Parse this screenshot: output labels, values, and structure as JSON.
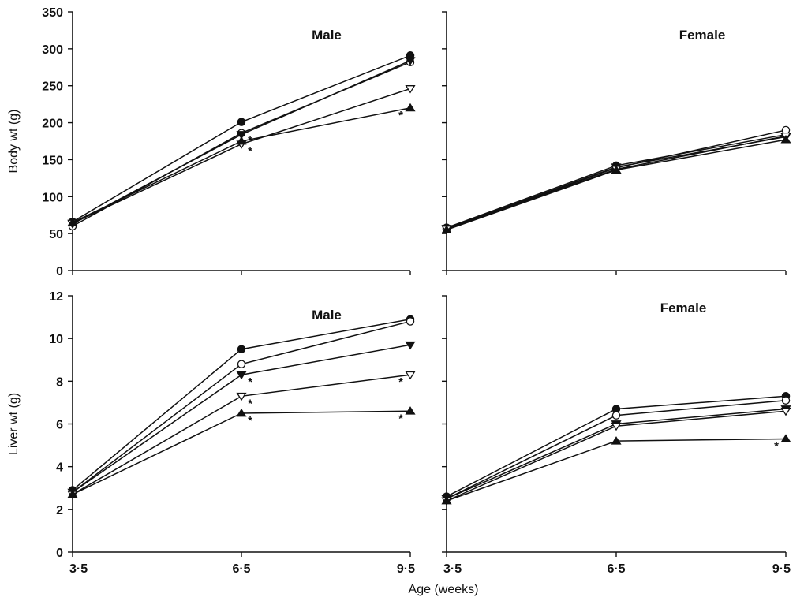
{
  "chart_data": [
    {
      "type": "line",
      "panel": "top-left",
      "title": "Male",
      "ylabel": "Body wt (g)",
      "xlabel": "",
      "x": [
        3.5,
        6.5,
        9.5
      ],
      "xlim": [
        3.5,
        9.5
      ],
      "ylim": [
        0,
        350
      ],
      "yticks": [
        "0",
        "50",
        "100",
        "150",
        "200",
        "250",
        "300",
        "350"
      ],
      "xticks": [],
      "series": [
        {
          "marker": "filled-circle",
          "values": [
            66,
            201,
            291
          ],
          "stars": [
            false,
            false,
            false
          ]
        },
        {
          "marker": "open-circle",
          "values": [
            60,
            186,
            282
          ],
          "stars": [
            false,
            true,
            false
          ]
        },
        {
          "marker": "filled-triangle-down",
          "values": [
            63,
            184,
            284
          ],
          "stars": [
            false,
            false,
            false
          ]
        },
        {
          "marker": "open-triangle-down",
          "values": [
            64,
            171,
            246
          ],
          "stars": [
            false,
            true,
            false
          ]
        },
        {
          "marker": "filled-triangle-up",
          "values": [
            65,
            175,
            220
          ],
          "stars": [
            false,
            false,
            true
          ]
        }
      ]
    },
    {
      "type": "line",
      "panel": "top-right",
      "title": "Female",
      "ylabel": "",
      "xlabel": "",
      "x": [
        3.5,
        6.5,
        9.5
      ],
      "xlim": [
        3.5,
        9.5
      ],
      "ylim": [
        0,
        350
      ],
      "yticks": [],
      "xticks": [],
      "series": [
        {
          "marker": "filled-circle",
          "values": [
            58,
            142,
            184
          ],
          "stars": [
            false,
            false,
            false
          ]
        },
        {
          "marker": "open-circle",
          "values": [
            56,
            139,
            190
          ],
          "stars": [
            false,
            false,
            false
          ]
        },
        {
          "marker": "filled-triangle-down",
          "values": [
            57,
            140,
            181
          ],
          "stars": [
            false,
            false,
            false
          ]
        },
        {
          "marker": "open-triangle-down",
          "values": [
            56,
            137,
            182
          ],
          "stars": [
            false,
            false,
            false
          ]
        },
        {
          "marker": "filled-triangle-up",
          "values": [
            55,
            136,
            177
          ],
          "stars": [
            false,
            false,
            false
          ]
        }
      ]
    },
    {
      "type": "line",
      "panel": "bottom-left",
      "title": "Male",
      "ylabel": "Liver wt (g)",
      "xlabel": "",
      "x": [
        3.5,
        6.5,
        9.5
      ],
      "xlim": [
        3.5,
        9.5
      ],
      "ylim": [
        0,
        12
      ],
      "yticks": [
        "0",
        "2",
        "4",
        "6",
        "8",
        "10",
        "12"
      ],
      "xticks": [
        "3·5",
        "6·5",
        "9·5"
      ],
      "series": [
        {
          "marker": "filled-circle",
          "values": [
            2.9,
            9.5,
            10.9
          ],
          "stars": [
            false,
            false,
            false
          ]
        },
        {
          "marker": "open-circle",
          "values": [
            2.8,
            8.8,
            10.8
          ],
          "stars": [
            false,
            false,
            false
          ]
        },
        {
          "marker": "filled-triangle-down",
          "values": [
            2.8,
            8.3,
            9.7
          ],
          "stars": [
            false,
            true,
            false
          ]
        },
        {
          "marker": "open-triangle-down",
          "values": [
            2.7,
            7.3,
            8.3
          ],
          "stars": [
            false,
            true,
            true
          ]
        },
        {
          "marker": "filled-triangle-up",
          "values": [
            2.7,
            6.5,
            6.6
          ],
          "stars": [
            false,
            true,
            true
          ]
        }
      ]
    },
    {
      "type": "line",
      "panel": "bottom-right",
      "title": "Female",
      "ylabel": "",
      "xlabel": "",
      "x": [
        3.5,
        6.5,
        9.5
      ],
      "xlim": [
        3.5,
        9.5
      ],
      "ylim": [
        0,
        12
      ],
      "yticks": [],
      "xticks": [
        "3·5",
        "6·5",
        "9·5"
      ],
      "series": [
        {
          "marker": "filled-circle",
          "values": [
            2.6,
            6.7,
            7.3
          ],
          "stars": [
            false,
            false,
            false
          ]
        },
        {
          "marker": "open-circle",
          "values": [
            2.5,
            6.4,
            7.1
          ],
          "stars": [
            false,
            false,
            false
          ]
        },
        {
          "marker": "filled-triangle-down",
          "values": [
            2.5,
            6.0,
            6.7
          ],
          "stars": [
            false,
            false,
            false
          ]
        },
        {
          "marker": "open-triangle-down",
          "values": [
            2.4,
            5.9,
            6.6
          ],
          "stars": [
            false,
            false,
            false
          ]
        },
        {
          "marker": "filled-triangle-up",
          "values": [
            2.4,
            5.2,
            5.3
          ],
          "stars": [
            false,
            false,
            true
          ]
        }
      ]
    }
  ],
  "figure": {
    "shared_xlabel": "Age (weeks)"
  }
}
